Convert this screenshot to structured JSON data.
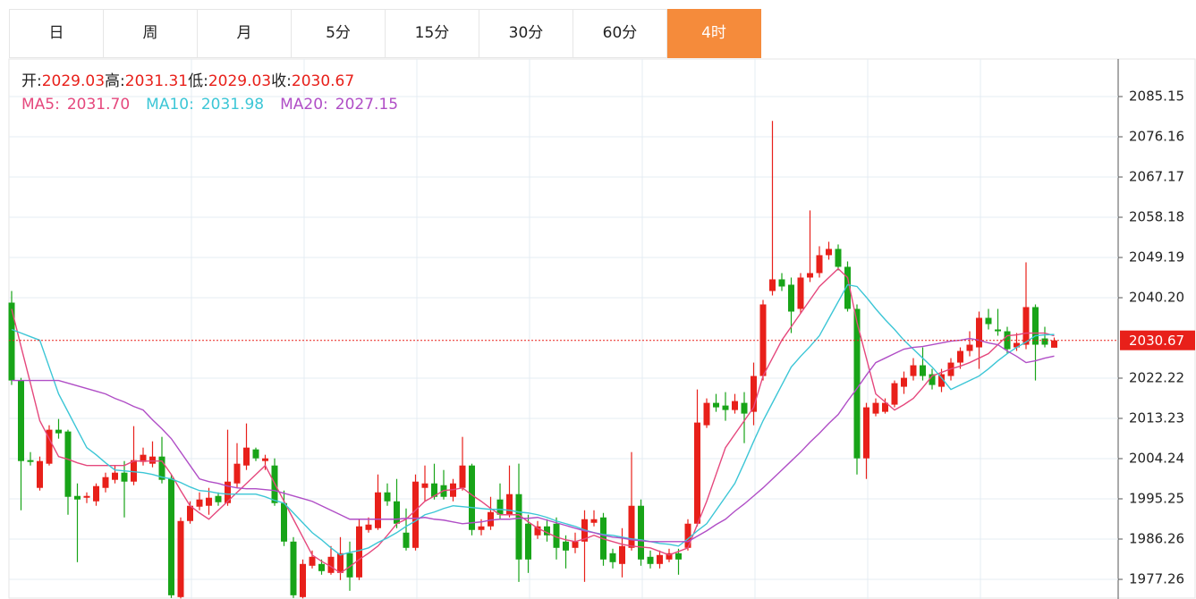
{
  "tabs": {
    "items": [
      "日",
      "周",
      "月",
      "5分",
      "15分",
      "30分",
      "60分",
      "4时"
    ],
    "active": 7
  },
  "chart_data": {
    "type": "candlestick",
    "header": [
      {
        "label": "开:",
        "value": 2029.03
      },
      {
        "label": "高:",
        "value": 2031.31
      },
      {
        "label": "低:",
        "value": 2029.03
      },
      {
        "label": "收:",
        "value": 2030.67
      }
    ],
    "up_color": "#e8201a",
    "down_color": "#18a418",
    "ylim": [
      1972.87,
      2093.54
    ],
    "yticks": [
      2085.15,
      2076.16,
      2067.17,
      2058.18,
      2049.19,
      {
        "value": 2040.2,
        "label": "2040.20"
      },
      2022.22,
      2013.23,
      2004.24,
      1995.25,
      1986.26,
      1977.26
    ],
    "grid": true,
    "last_price": 2030.67,
    "ohlc": [
      [
        2039.1,
        2041.7,
        2020.7,
        2021.7
      ],
      [
        2021.7,
        2022.3,
        1992.7,
        2003.7
      ],
      [
        2003.9,
        2005.7,
        2002.7,
        2003.5
      ],
      [
        1997.7,
        2004.7,
        1997.1,
        2003.7
      ],
      [
        2003.1,
        2011.7,
        2002.7,
        2010.7
      ],
      [
        2010.7,
        2013.1,
        2008.7,
        2009.9
      ],
      [
        2010.3,
        2010.7,
        1991.7,
        1995.7
      ],
      [
        1995.9,
        1998.7,
        1981.1,
        1995.1
      ],
      [
        1995.5,
        1996.7,
        1994.3,
        1995.9
      ],
      [
        1994.7,
        1998.7,
        1993.7,
        1998.1
      ],
      [
        1997.7,
        2001.1,
        1996.7,
        2000.1
      ],
      [
        1999.5,
        2002.7,
        1998.7,
        2001.1
      ],
      [
        2001.1,
        2003.7,
        1991.1,
        1999.1
      ],
      [
        1999.1,
        2011.5,
        1998.3,
        2003.9
      ],
      [
        2003.5,
        2006.7,
        2002.7,
        2005.1
      ],
      [
        2003.1,
        2008.1,
        2002.3,
        2004.7
      ],
      [
        2004.7,
        2009.1,
        1998.7,
        1999.5
      ],
      [
        1999.9,
        2000.7,
        1973.1,
        1973.7
      ],
      [
        1973.3,
        1991.1,
        1973.0,
        1990.3
      ],
      [
        1990.3,
        1994.7,
        1989.7,
        1993.7
      ],
      [
        1993.5,
        1996.7,
        1992.7,
        1995.1
      ],
      [
        1993.7,
        1997.7,
        1991.7,
        1995.5
      ],
      [
        1995.9,
        1996.7,
        1993.7,
        1994.5
      ],
      [
        1994.3,
        2010.7,
        1993.7,
        1999.1
      ],
      [
        1998.7,
        2007.7,
        1997.7,
        2003.1
      ],
      [
        2002.7,
        2012.1,
        2001.7,
        2006.7
      ],
      [
        2006.3,
        2006.7,
        2003.7,
        2004.3
      ],
      [
        2003.7,
        2005.1,
        2001.7,
        2004.3
      ],
      [
        2002.7,
        2004.3,
        1993.7,
        1994.3
      ],
      [
        1994.3,
        1997.1,
        1984.7,
        1985.7
      ],
      [
        1985.7,
        1986.7,
        1973.1,
        1973.7
      ],
      [
        1973.3,
        1981.7,
        1973.0,
        1980.7
      ],
      [
        1980.3,
        1983.7,
        1979.7,
        1982.3
      ],
      [
        1980.7,
        1981.7,
        1978.3,
        1979.1
      ],
      [
        1978.7,
        1984.7,
        1978.3,
        1982.3
      ],
      [
        1978.7,
        1986.7,
        1977.1,
        1983.1
      ],
      [
        1983.1,
        1985.7,
        1974.7,
        1977.7
      ],
      [
        1977.7,
        1990.7,
        1977.1,
        1989.1
      ],
      [
        1988.3,
        1991.1,
        1987.7,
        1989.5
      ],
      [
        1988.7,
        2000.7,
        1988.3,
        1996.7
      ],
      [
        1996.7,
        1998.7,
        1993.7,
        1994.7
      ],
      [
        1994.7,
        1999.7,
        1988.7,
        1989.7
      ],
      [
        1987.7,
        1993.1,
        1983.7,
        1984.3
      ],
      [
        1984.3,
        2000.7,
        1983.7,
        1999.1
      ],
      [
        1997.7,
        2002.7,
        1994.7,
        1998.7
      ],
      [
        1998.7,
        2003.1,
        1995.1,
        1995.7
      ],
      [
        1998.3,
        2001.7,
        1995.1,
        1995.7
      ],
      [
        1995.7,
        1999.7,
        1994.7,
        1998.7
      ],
      [
        1997.7,
        2009.1,
        1997.1,
        2002.7
      ],
      [
        2002.7,
        2003.1,
        1987.1,
        1988.3
      ],
      [
        1988.3,
        1990.7,
        1987.1,
        1989.1
      ],
      [
        1989.1,
        1995.7,
        1988.3,
        1992.3
      ],
      [
        1995.1,
        1998.7,
        1990.7,
        1991.7
      ],
      [
        1991.7,
        2002.7,
        1991.1,
        1996.3
      ],
      [
        1996.3,
        2003.1,
        1976.7,
        1981.7
      ],
      [
        1989.7,
        1991.7,
        1978.7,
        1981.7
      ],
      [
        1987.1,
        1990.3,
        1986.3,
        1989.1
      ],
      [
        1989.1,
        1990.7,
        1985.7,
        1987.1
      ],
      [
        1989.7,
        1991.1,
        1981.7,
        1984.3
      ],
      [
        1985.7,
        1987.1,
        1979.7,
        1983.7
      ],
      [
        1984.3,
        1987.7,
        1983.1,
        1985.7
      ],
      [
        1985.7,
        1992.7,
        1976.7,
        1990.7
      ],
      [
        1989.9,
        1992.7,
        1989.1,
        1990.7
      ],
      [
        1991.1,
        1992.1,
        1980.3,
        1981.7
      ],
      [
        1983.1,
        1984.1,
        1979.7,
        1981.1
      ],
      [
        1980.7,
        1988.7,
        1977.7,
        1984.7
      ],
      [
        1984.3,
        2005.7,
        1983.7,
        1993.7
      ],
      [
        1993.7,
        1995.1,
        1980.3,
        1981.7
      ],
      [
        1982.3,
        1983.7,
        1979.7,
        1980.7
      ],
      [
        1980.7,
        1983.7,
        1979.7,
        1982.7
      ],
      [
        1981.7,
        1984.1,
        1981.1,
        1983.1
      ],
      [
        1983.1,
        1984.1,
        1978.3,
        1981.7
      ],
      [
        1984.3,
        1990.7,
        1983.7,
        1989.7
      ],
      [
        1989.7,
        2019.7,
        1989.1,
        2012.3
      ],
      [
        2011.7,
        2017.7,
        2011.1,
        2016.7
      ],
      [
        2016.7,
        2018.7,
        2014.7,
        2015.7
      ],
      [
        2016.1,
        2019.1,
        2012.7,
        2015.1
      ],
      [
        2015.1,
        2018.7,
        2014.3,
        2017.1
      ],
      [
        2016.7,
        2019.1,
        2007.7,
        2014.3
      ],
      [
        2014.7,
        2025.7,
        2011.7,
        2022.7
      ],
      [
        2022.7,
        2039.7,
        2021.7,
        2038.7
      ],
      [
        2041.7,
        2079.7,
        2040.7,
        2044.3
      ],
      [
        2044.3,
        2045.7,
        2041.7,
        2042.7
      ],
      [
        2043.1,
        2044.7,
        2032.3,
        2037.1
      ],
      [
        2037.7,
        2045.7,
        2036.7,
        2044.7
      ],
      [
        2044.7,
        2059.7,
        2043.7,
        2045.7
      ],
      [
        2045.7,
        2051.7,
        2044.7,
        2049.7
      ],
      [
        2049.7,
        2052.7,
        2048.7,
        2051.1
      ],
      [
        2051.1,
        2052.1,
        2046.3,
        2047.1
      ],
      [
        2047.1,
        2048.3,
        2037.1,
        2037.7
      ],
      [
        2037.7,
        2038.7,
        2000.7,
        2004.3
      ],
      [
        2004.3,
        2016.7,
        1999.7,
        2015.7
      ],
      [
        2014.3,
        2017.7,
        2013.7,
        2016.7
      ],
      [
        2014.7,
        2017.7,
        2014.3,
        2016.7
      ],
      [
        2016.3,
        2021.7,
        2015.7,
        2021.1
      ],
      [
        2020.3,
        2023.7,
        2018.7,
        2022.3
      ],
      [
        2022.7,
        2026.7,
        2021.7,
        2025.1
      ],
      [
        2025.1,
        2029.1,
        2021.7,
        2022.7
      ],
      [
        2023.1,
        2024.3,
        2019.7,
        2020.7
      ],
      [
        2020.3,
        2024.3,
        2019.1,
        2023.1
      ],
      [
        2022.7,
        2026.7,
        2021.7,
        2025.7
      ],
      [
        2025.7,
        2029.1,
        2024.3,
        2028.3
      ],
      [
        2028.3,
        2032.7,
        2027.1,
        2029.7
      ],
      [
        2029.1,
        2037.1,
        2024.3,
        2035.7
      ],
      [
        2035.7,
        2037.7,
        2033.1,
        2034.3
      ],
      [
        2033.1,
        2037.7,
        2031.7,
        2032.7
      ],
      [
        2032.7,
        2033.7,
        2027.7,
        2028.7
      ],
      [
        2029.1,
        2032.3,
        2028.3,
        2030.1
      ],
      [
        2029.7,
        2048.1,
        2028.7,
        2038.1
      ],
      [
        2038.1,
        2038.7,
        2021.7,
        2029.7
      ],
      [
        2031.1,
        2033.7,
        2029.1,
        2029.7
      ],
      [
        2029.03,
        2031.31,
        2029.03,
        2030.67
      ]
    ],
    "ma_series": [
      {
        "name": "MA5",
        "label": "MA5:",
        "color": "#e5487d",
        "value_label": "2031.70",
        "values": [
          2037.7,
          2029.3,
          2021.1,
          2012.7,
          2008.7,
          2004.7,
          2004.1,
          2003.3,
          2002.7,
          2002.7,
          2002.7,
          2002.7,
          2002.7,
          2003.7,
          2003.7,
          2003.7,
          2003.7,
          2000.7,
          1997.1,
          1993.7,
          1992.1,
          1990.7,
          1992.7,
          1994.7,
          1996.7,
          1998.7,
          2000.7,
          2002.7,
          1998.7,
          1994.7,
          1990.7,
          1986.7,
          1982.7,
          1981.3,
          1980.1,
          1978.7,
          1980.1,
          1981.7,
          1983.1,
          1984.7,
          1987.1,
          1989.7,
          1990.7,
          1992.7,
          1994.7,
          1995.9,
          1997.1,
          1997.3,
          1997.7,
          1996.1,
          1994.7,
          1993.1,
          1991.7,
          1991.7,
          1991.7,
          1990.1,
          1988.7,
          1987.7,
          1986.7,
          1986.1,
          1985.7,
          1986.3,
          1987.1,
          1986.3,
          1985.7,
          1985.1,
          1984.7,
          1984.5,
          1984.3,
          1983.5,
          1982.7,
          1983.5,
          1984.3,
          1989.5,
          1994.7,
          2000.7,
          2006.7,
          2009.7,
          2012.7,
          2015.7,
          2022.7,
          2026.7,
          2030.7,
          2033.7,
          2036.7,
          2039.7,
          2042.7,
          2044.7,
          2046.7,
          2044.7,
          2034.7,
          2026.7,
          2018.7,
          2016.9,
          2015.1,
          2016.3,
          2017.7,
          2020.1,
          2022.7,
          2023.5,
          2024.3,
          2024.9,
          2025.7,
          2026.7,
          2027.7,
          2029.7,
          2031.7,
          2031.9,
          2032.3,
          2032.3,
          2032.3,
          2031.7
        ]
      },
      {
        "name": "MA10",
        "label": "MA10:",
        "color": "#3cc6d6",
        "values": [
          2033.1,
          2032.3,
          2031.5,
          2030.7,
          2024.7,
          2018.7,
          2014.7,
          2010.7,
          2006.7,
          2005.1,
          2003.3,
          2001.7,
          2001.5,
          2001.3,
          2001.1,
          2000.7,
          2000.1,
          1999.7,
          1998.9,
          1997.9,
          1997.1,
          1996.9,
          1996.5,
          1996.3,
          1996.3,
          1996.3,
          1996.3,
          1995.7,
          1994.9,
          1994.3,
          1992.1,
          1989.9,
          1987.7,
          1986.1,
          1984.3,
          1982.7,
          1983.3,
          1983.7,
          1984.3,
          1985.5,
          1986.5,
          1987.7,
          1989.1,
          1990.3,
          1991.7,
          1992.3,
          1993.1,
          1993.7,
          1993.5,
          1993.3,
          1993.1,
          1992.9,
          1992.9,
          1992.7,
          1992.3,
          1992.1,
          1991.7,
          1991.1,
          1990.3,
          1989.7,
          1989.1,
          1988.3,
          1987.7,
          1987.3,
          1987.1,
          1986.7,
          1986.3,
          1986.1,
          1985.7,
          1985.3,
          1985.1,
          1984.7,
          1986.3,
          1988.1,
          1989.7,
          1992.7,
          1995.7,
          1998.7,
          2003.3,
          2008.1,
          2012.7,
          2016.7,
          2020.7,
          2024.7,
          2027.1,
          2029.3,
          2031.7,
          2035.5,
          2039.3,
          2043.1,
          2042.7,
          2040.3,
          2037.7,
          2035.3,
          2033.1,
          2030.7,
          2028.7,
          2026.7,
          2024.7,
          2022.3,
          2019.7,
          2020.7,
          2021.7,
          2022.7,
          2024.3,
          2026.1,
          2027.7,
          2029.1,
          2030.3,
          2031.7,
          2031.9,
          2031.98
        ]
      },
      {
        "name": "MA20",
        "label": "MA20:",
        "color": "#b04ec6",
        "values": [
          2021.7,
          2021.7,
          2021.7,
          2021.7,
          2021.7,
          2021.7,
          2021.1,
          2020.5,
          2019.9,
          2019.3,
          2018.7,
          2017.7,
          2016.9,
          2015.9,
          2015.1,
          2012.9,
          2010.9,
          2008.7,
          2005.7,
          2002.7,
          1999.7,
          1999.1,
          1998.7,
          1998.1,
          1997.7,
          1997.5,
          1997.5,
          1997.3,
          1997.1,
          1996.5,
          1995.9,
          1995.3,
          1994.7,
          1993.7,
          1992.7,
          1991.7,
          1990.7,
          1990.7,
          1990.7,
          1990.7,
          1990.7,
          1990.7,
          1990.9,
          1990.9,
          1991.1,
          1990.7,
          1990.5,
          1990.1,
          1989.7,
          1989.9,
          1990.1,
          1990.5,
          1990.7,
          1990.7,
          1990.9,
          1990.9,
          1991.1,
          1990.5,
          1989.9,
          1989.3,
          1988.7,
          1988.1,
          1987.7,
          1987.1,
          1986.7,
          1986.5,
          1986.1,
          1985.9,
          1985.7,
          1985.7,
          1985.7,
          1985.7,
          1985.7,
          1986.9,
          1988.1,
          1989.5,
          1990.7,
          1992.5,
          1994.1,
          1995.9,
          1997.7,
          1999.7,
          2001.7,
          2003.7,
          2005.7,
          2007.9,
          2009.9,
          2012.1,
          2014.1,
          2017.1,
          2019.9,
          2022.9,
          2025.7,
          2026.7,
          2027.7,
          2028.7,
          2029.1,
          2029.3,
          2029.7,
          2030.1,
          2030.5,
          2030.7,
          2031.1,
          2030.7,
          2030.1,
          2029.7,
          2028.3,
          2027.1,
          2025.7,
          2026.1,
          2026.7,
          2027.15
        ]
      }
    ]
  }
}
